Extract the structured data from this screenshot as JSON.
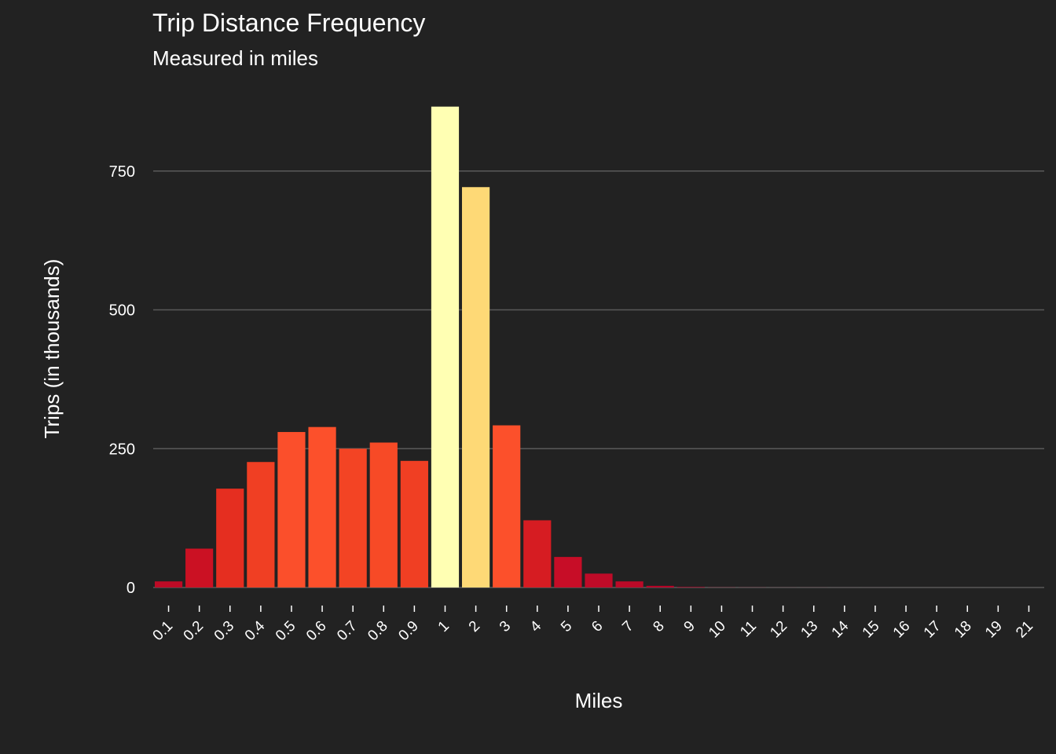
{
  "chart_data": {
    "type": "bar",
    "title": "Trip Distance Frequency",
    "subtitle": "Measured in miles",
    "xlabel": "Miles",
    "ylabel": "Trips (in thousands)",
    "categories": [
      "0.1",
      "0.2",
      "0.3",
      "0.4",
      "0.5",
      "0.6",
      "0.7",
      "0.8",
      "0.9",
      "1",
      "2",
      "3",
      "4",
      "5",
      "6",
      "7",
      "8",
      "9",
      "10",
      "11",
      "12",
      "13",
      "14",
      "15",
      "16",
      "17",
      "18",
      "19",
      "21"
    ],
    "values": [
      11,
      70,
      178,
      226,
      280,
      289,
      250,
      261,
      228,
      866,
      721,
      292,
      121,
      55,
      25,
      11,
      3,
      1,
      0.3,
      0.2,
      0.1,
      0.1,
      0.05,
      0.05,
      0.03,
      0.02,
      0.02,
      0.01,
      0.01
    ],
    "colors": [
      "#bd0b26",
      "#cb1123",
      "#e52e20",
      "#f03f23",
      "#fb4f2b",
      "#fc502b",
      "#f34424",
      "#f74a26",
      "#f03f23",
      "#ffffb3",
      "#fed976",
      "#fc502b",
      "#d61c22",
      "#c70d27",
      "#bf0b28",
      "#bb0a28",
      "#b50026",
      "#b10026",
      "#b10026",
      "#b10026",
      "#b10026",
      "#b10026",
      "#b10026",
      "#b10026",
      "#b10026",
      "#b10026",
      "#b10026",
      "#b10026",
      "#b10026"
    ],
    "ylim": [
      0,
      900
    ],
    "yticks": [
      0,
      250,
      500,
      750
    ],
    "grid": true,
    "legend": "none",
    "background": "#222222",
    "grid_color": "#595959"
  }
}
